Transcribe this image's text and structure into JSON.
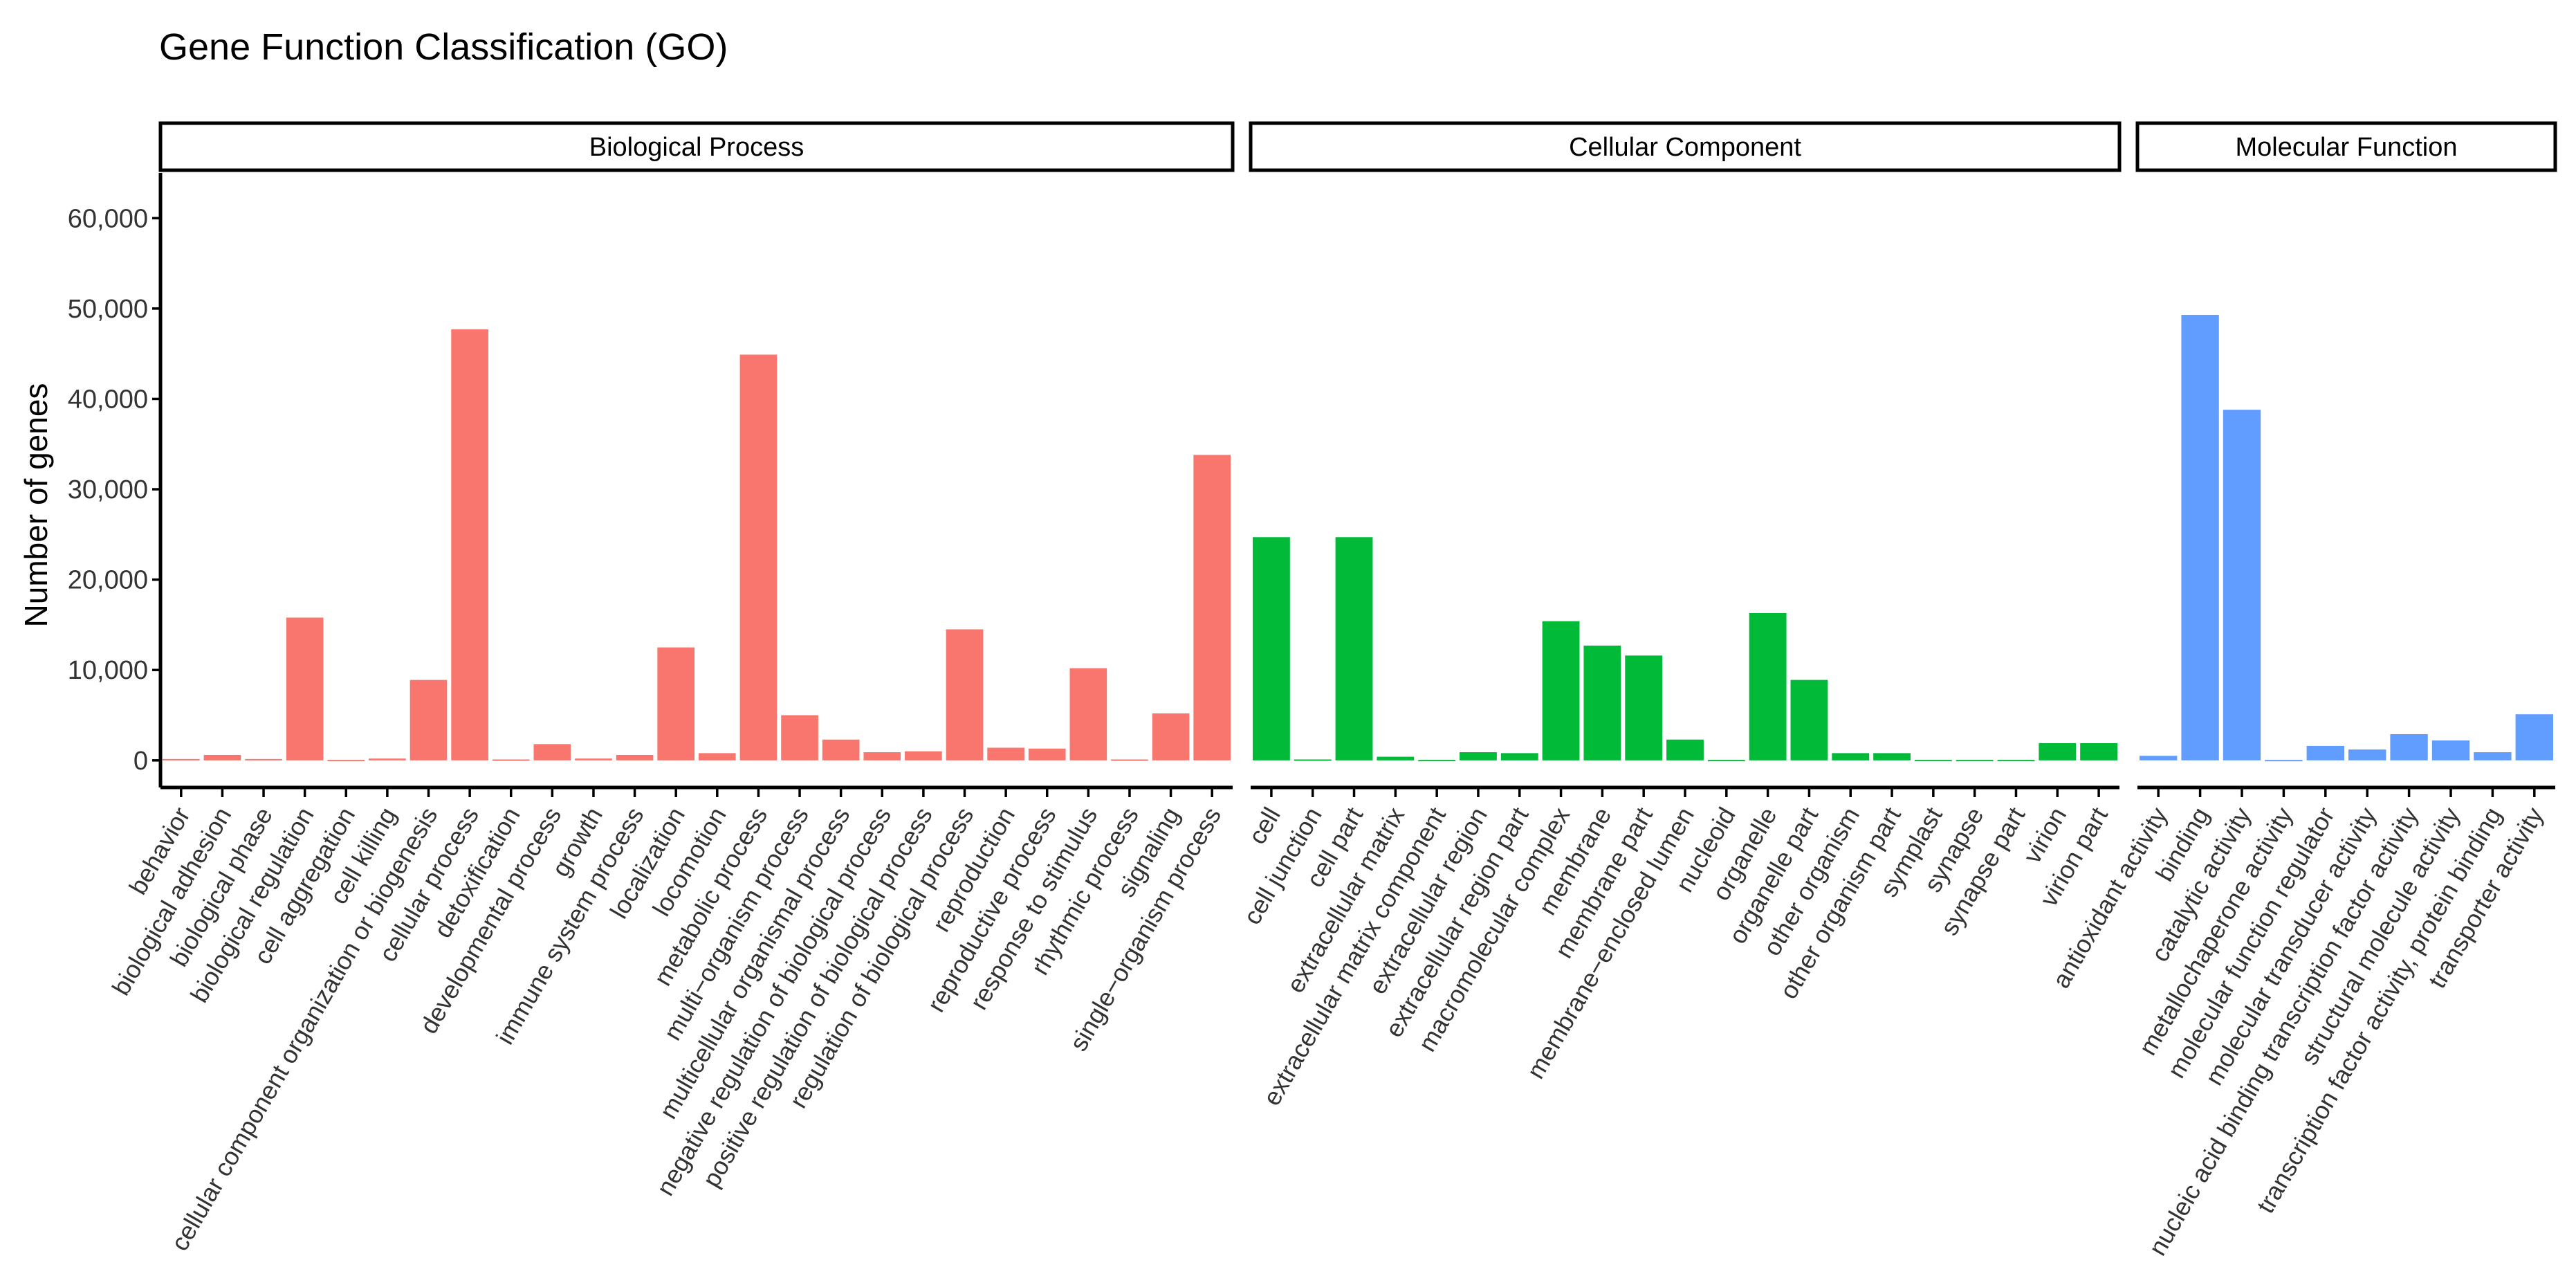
{
  "chart_data": {
    "type": "bar",
    "title": "Gene Function Classification (GO)",
    "xlabel": "",
    "ylabel": "Number of genes",
    "ylim": [
      -3000,
      65000
    ],
    "yticks": [
      0,
      10000,
      20000,
      30000,
      40000,
      50000,
      60000
    ],
    "ytick_labels": [
      "0",
      "10,000",
      "20,000",
      "30,000",
      "40,000",
      "50,000",
      "60,000"
    ],
    "grid": false,
    "facets": [
      {
        "name": "Biological Process",
        "color": "#F8766D",
        "categories": [
          "behavior",
          "biological adhesion",
          "biological phase",
          "biological regulation",
          "cell aggregation",
          "cell killing",
          "cellular component organization or biogenesis",
          "cellular process",
          "detoxification",
          "developmental process",
          "growth",
          "immune system process",
          "localization",
          "locomotion",
          "metabolic process",
          "multi−organism process",
          "multicellular organismal process",
          "negative regulation of biological process",
          "positive regulation of biological process",
          "regulation of biological process",
          "reproduction",
          "reproductive process",
          "response to stimulus",
          "rhythmic process",
          "signaling",
          "single−organism process"
        ],
        "values": [
          150,
          600,
          150,
          15800,
          50,
          200,
          8900,
          47700,
          100,
          1800,
          200,
          600,
          12500,
          800,
          44900,
          5000,
          2300,
          900,
          1000,
          14500,
          1400,
          1300,
          10200,
          100,
          5200,
          33800
        ]
      },
      {
        "name": "Cellular Component",
        "color": "#00BA38",
        "categories": [
          "cell",
          "cell junction",
          "cell part",
          "extracellular matrix",
          "extracellular matrix component",
          "extracellular region",
          "extracellular region part",
          "macromolecular complex",
          "membrane",
          "membrane part",
          "membrane−enclosed lumen",
          "nucleoid",
          "organelle",
          "organelle part",
          "other organism",
          "other organism part",
          "symplast",
          "synapse",
          "synapse part",
          "virion",
          "virion part"
        ],
        "values": [
          24700,
          100,
          24700,
          400,
          50,
          900,
          800,
          15400,
          12700,
          11600,
          2300,
          50,
          16300,
          8900,
          800,
          800,
          50,
          50,
          50,
          1900,
          1900
        ]
      },
      {
        "name": "Molecular Function",
        "color": "#619CFF",
        "categories": [
          "antioxidant activity",
          "binding",
          "catalytic activity",
          "metallochaperone activity",
          "molecular function regulator",
          "molecular transducer activity",
          "nucleic acid binding transcription factor activity",
          "structural molecule activity",
          "transcription factor activity, protein binding",
          "transporter activity"
        ],
        "values": [
          500,
          49300,
          38800,
          50,
          1600,
          1200,
          2900,
          2200,
          900,
          5100
        ]
      }
    ]
  }
}
